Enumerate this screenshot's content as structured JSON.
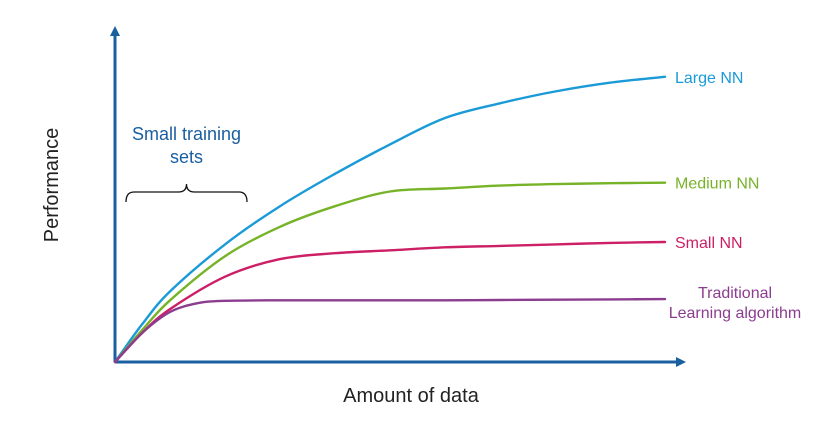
{
  "chart_data": {
    "type": "line",
    "xlabel": "Amount of data",
    "ylabel": "Performance",
    "xlim": [
      0,
      100
    ],
    "ylim": [
      0,
      100
    ],
    "grid": false,
    "legend": "inline labels at right end of each curve",
    "series": [
      {
        "name": "Large NN",
        "color": "#1a9ad6",
        "x": [
          0,
          5,
          10,
          20,
          30,
          40,
          50,
          60,
          70,
          80,
          90,
          100
        ],
        "y": [
          0,
          13,
          24,
          40,
          53,
          64,
          74,
          83,
          88,
          92,
          95,
          97
        ]
      },
      {
        "name": "Medium NN",
        "color": "#77b328",
        "x": [
          0,
          5,
          10,
          20,
          30,
          40,
          50,
          60,
          70,
          80,
          90,
          100
        ],
        "y": [
          0,
          11,
          21,
          36,
          46,
          53,
          58,
          59,
          60,
          60.5,
          60.8,
          61
        ]
      },
      {
        "name": "Small NN",
        "color": "#cc1f66",
        "x": [
          0,
          5,
          10,
          20,
          30,
          40,
          50,
          60,
          70,
          80,
          90,
          100
        ],
        "y": [
          0,
          10,
          18,
          29,
          35,
          37,
          38,
          39,
          39.5,
          40,
          40.5,
          40.8
        ]
      },
      {
        "name_lines": [
          "Traditional",
          "Learning algorithm"
        ],
        "color": "#8b3d8f",
        "x": [
          0,
          5,
          10,
          15,
          20,
          30,
          40,
          50,
          60,
          70,
          80,
          90,
          100
        ],
        "y": [
          0,
          10,
          17,
          20,
          20.8,
          21,
          21,
          21,
          21,
          21.1,
          21.2,
          21.3,
          21.4
        ]
      }
    ],
    "annotations": [
      {
        "text_lines": [
          "Small training",
          "sets"
        ],
        "color": "#1a5fa0",
        "x_range": [
          2,
          24
        ]
      }
    ],
    "axis_color": "#1a5fa0"
  }
}
